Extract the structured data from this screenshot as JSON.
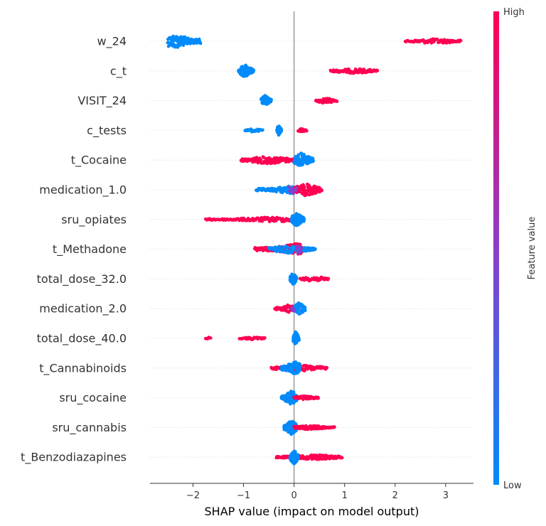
{
  "chart_data": {
    "type": "scatter",
    "subtype": "shap-beeswarm",
    "xlabel": "SHAP value (impact on model output)",
    "xlim": [
      -2.85,
      3.55
    ],
    "xticks": [
      -2,
      -1,
      0,
      1,
      2,
      3
    ],
    "xtick_labels": [
      "−2",
      "−1",
      "0",
      "1",
      "2",
      "3"
    ],
    "zero_line": 0,
    "colorbar": {
      "label": "Feature value",
      "high_label": "High",
      "low_label": "Low",
      "high_color": "#ff0052",
      "mid_color": "#8a3ec8",
      "low_color": "#008bfb"
    },
    "features": [
      {
        "name": "w_24",
        "clusters": [
          {
            "color": "low",
            "min": -2.5,
            "max": -1.85,
            "center": -2.35,
            "n": 120,
            "spread": 1.0
          },
          {
            "color": "high",
            "min": 2.2,
            "max": 3.3,
            "center": 2.8,
            "n": 75,
            "spread": 0.35
          }
        ]
      },
      {
        "name": "c_t",
        "clusters": [
          {
            "color": "low",
            "min": -1.1,
            "max": -0.8,
            "center": -0.97,
            "n": 90,
            "spread": 0.9
          },
          {
            "color": "high",
            "min": 0.72,
            "max": 1.65,
            "center": 1.2,
            "n": 80,
            "spread": 0.35
          }
        ]
      },
      {
        "name": "VISIT_24",
        "clusters": [
          {
            "color": "low",
            "min": -0.65,
            "max": -0.45,
            "center": -0.57,
            "n": 60,
            "spread": 0.75
          },
          {
            "color": "high",
            "min": 0.43,
            "max": 0.85,
            "center": 0.62,
            "n": 45,
            "spread": 0.4
          }
        ]
      },
      {
        "name": "c_tests",
        "clusters": [
          {
            "color": "low",
            "min": -0.97,
            "max": -0.62,
            "center": -0.8,
            "n": 22,
            "spread": 0.25
          },
          {
            "color": "low",
            "min": -0.34,
            "max": -0.25,
            "center": -0.3,
            "n": 40,
            "spread": 0.75
          },
          {
            "color": "high",
            "min": 0.08,
            "max": 0.25,
            "center": 0.15,
            "n": 18,
            "spread": 0.3
          }
        ]
      },
      {
        "name": "t_Cocaine",
        "clusters": [
          {
            "color": "high",
            "min": -1.05,
            "max": 0.0,
            "center": -0.5,
            "n": 110,
            "spread": 0.55
          },
          {
            "color": "low",
            "min": 0.0,
            "max": 0.38,
            "center": 0.15,
            "n": 110,
            "spread": 1.0
          }
        ]
      },
      {
        "name": "medication_1.0",
        "clusters": [
          {
            "color": "low",
            "min": -0.75,
            "max": 0.1,
            "center": -0.05,
            "n": 90,
            "spread": 0.6
          },
          {
            "color": "high",
            "min": 0.0,
            "max": 0.55,
            "center": 0.25,
            "n": 100,
            "spread": 0.9
          },
          {
            "color": "mid",
            "min": -0.1,
            "max": 0.05,
            "center": -0.05,
            "n": 10,
            "spread": 0.9
          }
        ]
      },
      {
        "name": "sru_opiates",
        "clusters": [
          {
            "color": "high",
            "min": -1.75,
            "max": -0.02,
            "center": -0.4,
            "n": 120,
            "spread": 0.35
          },
          {
            "color": "low",
            "min": -0.05,
            "max": 0.2,
            "center": 0.05,
            "n": 80,
            "spread": 1.0
          }
        ]
      },
      {
        "name": "t_Methadone",
        "clusters": [
          {
            "color": "high",
            "min": -0.78,
            "max": 0.2,
            "center": 0.05,
            "n": 100,
            "spread": 0.8
          },
          {
            "color": "low",
            "min": -0.5,
            "max": 0.42,
            "center": -0.1,
            "n": 90,
            "spread": 0.55
          },
          {
            "color": "mid",
            "min": 0.05,
            "max": 0.15,
            "center": 0.1,
            "n": 10,
            "spread": 0.9
          }
        ]
      },
      {
        "name": "total_dose_32.0",
        "clusters": [
          {
            "color": "low",
            "min": -0.08,
            "max": 0.05,
            "center": -0.02,
            "n": 60,
            "spread": 0.9
          },
          {
            "color": "high",
            "min": 0.12,
            "max": 0.68,
            "center": 0.4,
            "n": 55,
            "spread": 0.35
          }
        ]
      },
      {
        "name": "medication_2.0",
        "clusters": [
          {
            "color": "high",
            "min": -0.38,
            "max": -0.02,
            "center": -0.1,
            "n": 55,
            "spread": 0.55
          },
          {
            "color": "low",
            "min": -0.02,
            "max": 0.22,
            "center": 0.1,
            "n": 60,
            "spread": 0.85
          },
          {
            "color": "mid",
            "min": -0.05,
            "max": 0.0,
            "center": -0.02,
            "n": 6,
            "spread": 0.7
          }
        ]
      },
      {
        "name": "total_dose_40.0",
        "clusters": [
          {
            "color": "high",
            "min": -1.75,
            "max": -1.65,
            "center": -1.7,
            "n": 6,
            "spread": 0.2
          },
          {
            "color": "high",
            "min": -1.08,
            "max": -0.58,
            "center": -0.8,
            "n": 30,
            "spread": 0.2
          },
          {
            "color": "low",
            "min": -0.02,
            "max": 0.1,
            "center": 0.03,
            "n": 40,
            "spread": 0.95
          }
        ]
      },
      {
        "name": "t_Cannabinoids",
        "clusters": [
          {
            "color": "high",
            "min": -0.45,
            "max": 0.65,
            "center": 0.1,
            "n": 110,
            "spread": 0.45
          },
          {
            "color": "low",
            "min": -0.25,
            "max": 0.12,
            "center": 0.0,
            "n": 90,
            "spread": 1.0
          }
        ]
      },
      {
        "name": "sru_cocaine",
        "clusters": [
          {
            "color": "low",
            "min": -0.25,
            "max": 0.05,
            "center": -0.05,
            "n": 100,
            "spread": 1.0
          },
          {
            "color": "high",
            "min": 0.0,
            "max": 0.48,
            "center": 0.2,
            "n": 60,
            "spread": 0.3
          }
        ]
      },
      {
        "name": "sru_cannabis",
        "clusters": [
          {
            "color": "low",
            "min": -0.2,
            "max": 0.05,
            "center": -0.05,
            "n": 110,
            "spread": 1.0
          },
          {
            "color": "high",
            "min": 0.0,
            "max": 0.8,
            "center": 0.3,
            "n": 90,
            "spread": 0.3
          }
        ]
      },
      {
        "name": "t_Benzodiazapines",
        "clusters": [
          {
            "color": "high",
            "min": -0.35,
            "max": 0.95,
            "center": 0.4,
            "n": 130,
            "spread": 0.35
          },
          {
            "color": "low",
            "min": -0.08,
            "max": 0.08,
            "center": 0.0,
            "n": 90,
            "spread": 1.0
          }
        ]
      }
    ]
  }
}
